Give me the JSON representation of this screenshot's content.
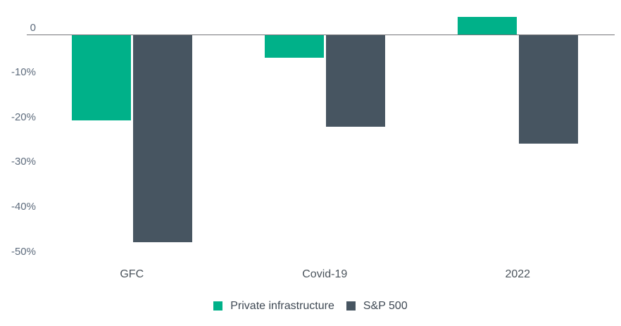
{
  "chart_data": {
    "type": "bar",
    "title": "",
    "xlabel": "",
    "ylabel": "",
    "unit": "%",
    "categories": [
      "GFC",
      "Covid-19",
      "2022"
    ],
    "series": [
      {
        "name": "Private infrastructure",
        "color": "#00b189",
        "values": [
          -19.0,
          -5.1,
          3.9
        ]
      },
      {
        "name": "S&P 500",
        "color": "#475561",
        "values": [
          -46.2,
          -20.4,
          -24.2
        ]
      }
    ],
    "yticks": [
      0,
      -10,
      -20,
      -30,
      -40,
      -50
    ],
    "ytick_labels": [
      "0",
      "-10%",
      "-20%",
      "-30%",
      "-40%",
      "-50%"
    ],
    "ylim": [
      -52,
      6
    ],
    "grid": false,
    "legend_position": "bottom",
    "axis_line_color": "#76767a",
    "tick_label_color": "#5d6b7c",
    "category_label_color": "#4b545c",
    "legend_text_color": "#3e4853"
  }
}
